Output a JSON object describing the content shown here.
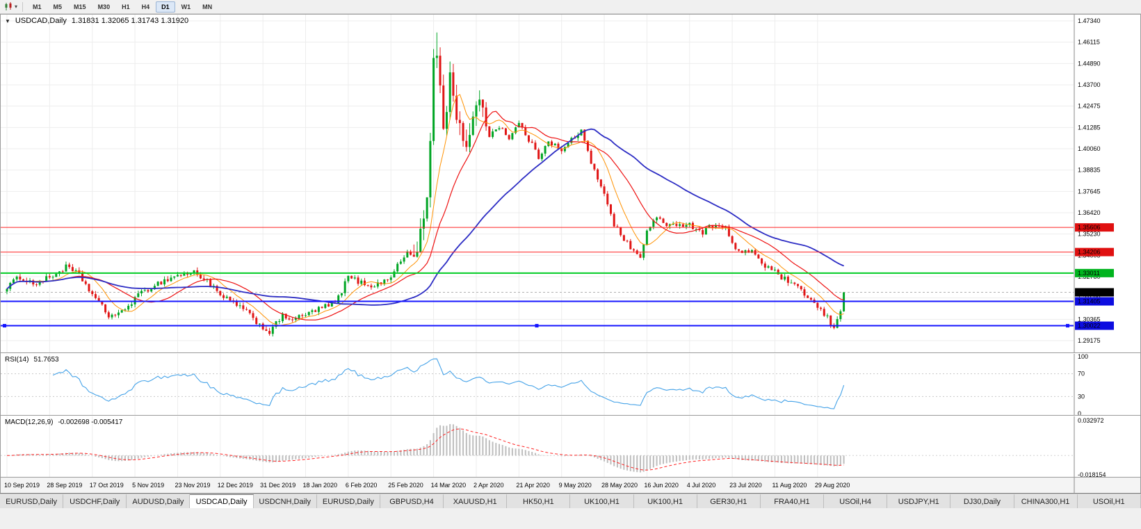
{
  "icons": {
    "dropdown": "▾",
    "collapse": "▼"
  },
  "toolbar": {
    "chart_type_icon": "candlestick-chart-icon",
    "timeframes": [
      {
        "label": "M1"
      },
      {
        "label": "M5"
      },
      {
        "label": "M15"
      },
      {
        "label": "M30"
      },
      {
        "label": "H1"
      },
      {
        "label": "H4"
      },
      {
        "label": "D1"
      },
      {
        "label": "W1"
      },
      {
        "label": "MN"
      }
    ],
    "active_timeframe": "D1"
  },
  "chart_header": {
    "symbol": "USDCAD,Daily",
    "ohlc": "1.31831 1.32065 1.31743 1.31920"
  },
  "chart_data": {
    "type": "candlestick",
    "symbol": "USDCAD",
    "timeframe": "Daily",
    "num_candles": 256,
    "candles_per_x_label": 13,
    "ylim": [
      1.29175,
      1.4734
    ],
    "y_axis_ticks": [
      "1.47340",
      "1.46115",
      "1.44890",
      "1.43700",
      "1.42475",
      "1.41285",
      "1.40060",
      "1.38835",
      "1.37645",
      "1.36420",
      "1.35230",
      "1.34005",
      "1.32780",
      "1.31590",
      "1.30365",
      "1.29175"
    ],
    "x_axis_dates": [
      "10 Sep 2019",
      "28 Sep 2019",
      "17 Oct 2019",
      "5 Nov 2019",
      "23 Nov 2019",
      "12 Dec 2019",
      "31 Dec 2019",
      "18 Jan 2020",
      "6 Feb 2020",
      "25 Feb 2020",
      "14 Mar 2020",
      "2 Apr 2020",
      "21 Apr 2020",
      "9 May 2020",
      "28 May 2020",
      "16 Jun 2020",
      "4 Jul 2020",
      "23 Jul 2020",
      "11 Aug 2020",
      "29 Aug 2020"
    ],
    "close_waypoints": [
      [
        0,
        1.3225
      ],
      [
        4,
        1.328
      ],
      [
        8,
        1.324
      ],
      [
        13,
        1.3275
      ],
      [
        18,
        1.3335
      ],
      [
        22,
        1.329
      ],
      [
        26,
        1.318
      ],
      [
        31,
        1.306
      ],
      [
        35,
        1.3075
      ],
      [
        39,
        1.316
      ],
      [
        45,
        1.3235
      ],
      [
        52,
        1.329
      ],
      [
        57,
        1.3305
      ],
      [
        61,
        1.326
      ],
      [
        65,
        1.317
      ],
      [
        70,
        1.3125
      ],
      [
        75,
        1.3045
      ],
      [
        78,
        1.299
      ],
      [
        80,
        1.2968
      ],
      [
        84,
        1.3055
      ],
      [
        88,
        1.304
      ],
      [
        91,
        1.3065
      ],
      [
        96,
        1.3105
      ],
      [
        100,
        1.3125
      ],
      [
        104,
        1.328
      ],
      [
        108,
        1.3245
      ],
      [
        112,
        1.323
      ],
      [
        116,
        1.3265
      ],
      [
        119,
        1.334
      ],
      [
        122,
        1.342
      ],
      [
        124,
        1.339
      ],
      [
        126,
        1.352
      ],
      [
        128,
        1.372
      ],
      [
        129,
        1.405
      ],
      [
        130,
        1.448
      ],
      [
        131,
        1.455
      ],
      [
        132,
        1.438
      ],
      [
        133,
        1.412
      ],
      [
        134,
        1.425
      ],
      [
        135,
        1.442
      ],
      [
        136,
        1.43
      ],
      [
        138,
        1.412
      ],
      [
        140,
        1.404
      ],
      [
        143,
        1.423
      ],
      [
        145,
        1.426
      ],
      [
        147,
        1.408
      ],
      [
        150,
        1.414
      ],
      [
        153,
        1.407
      ],
      [
        156,
        1.415
      ],
      [
        159,
        1.406
      ],
      [
        162,
        1.396
      ],
      [
        165,
        1.406
      ],
      [
        169,
        1.399
      ],
      [
        172,
        1.406
      ],
      [
        175,
        1.411
      ],
      [
        178,
        1.392
      ],
      [
        182,
        1.376
      ],
      [
        185,
        1.358
      ],
      [
        188,
        1.349
      ],
      [
        191,
        1.343
      ],
      [
        193,
        1.338
      ],
      [
        195,
        1.354
      ],
      [
        198,
        1.363
      ],
      [
        201,
        1.3555
      ],
      [
        204,
        1.3585
      ],
      [
        208,
        1.3575
      ],
      [
        212,
        1.3535
      ],
      [
        216,
        1.3585
      ],
      [
        219,
        1.3555
      ],
      [
        221,
        1.3465
      ],
      [
        224,
        1.3405
      ],
      [
        227,
        1.3435
      ],
      [
        230,
        1.3355
      ],
      [
        234,
        1.3305
      ],
      [
        237,
        1.3265
      ],
      [
        240,
        1.3225
      ],
      [
        243,
        1.3185
      ],
      [
        247,
        1.3105
      ],
      [
        250,
        1.3045
      ],
      [
        252,
        1.299
      ],
      [
        253,
        1.303
      ],
      [
        254,
        1.309
      ],
      [
        255,
        1.3192
      ]
    ],
    "final_close": 1.3192,
    "peak_high": 1.4668,
    "up_color": "#00a524",
    "down_color": "#e01515",
    "grid_color": "#ededed",
    "moving_averages": [
      {
        "name": "fast",
        "period": 9,
        "color": "#ff9100",
        "width": 1
      },
      {
        "name": "medium",
        "period": 20,
        "color": "#ee1111",
        "width": 1.2
      },
      {
        "name": "slow",
        "period": 50,
        "color": "#2c2cc4",
        "width": 1.8
      }
    ],
    "horizontal_levels": [
      {
        "price": 1.35606,
        "label": "1.35606",
        "line_color": "#ff2020",
        "badge_bg": "#e01010",
        "thickness": 1,
        "selected": false
      },
      {
        "price": 1.34206,
        "label": "1.34206",
        "line_color": "#ff2020",
        "badge_bg": "#e01010",
        "thickness": 1,
        "selected": false
      },
      {
        "price": 1.33011,
        "label": "1.33011",
        "line_color": "#00cc22",
        "badge_bg": "#00b41e",
        "thickness": 2,
        "selected": false
      },
      {
        "price": 1.31405,
        "label": "1.31405",
        "line_color": "#1414ff",
        "badge_bg": "#0d0de0",
        "thickness": 2,
        "selected": false
      },
      {
        "price": 1.30022,
        "label": "1.30022",
        "line_color": "#1414ff",
        "badge_bg": "#0d0de0",
        "thickness": 2,
        "selected": true
      }
    ],
    "current_price": {
      "value": 1.3192,
      "label": "1.31920",
      "badge_bg": "#000000",
      "line_color": "#b0b0b0"
    }
  },
  "rsi": {
    "label": "RSI(14)",
    "value": "51.7653",
    "period": 14,
    "line_color": "#44a2e8",
    "level_lines": [
      70,
      30
    ],
    "axis_labels": [
      {
        "v": 100,
        "t": "100"
      },
      {
        "v": 70,
        "t": "70"
      },
      {
        "v": 30,
        "t": "30"
      },
      {
        "v": 0,
        "t": "0"
      }
    ]
  },
  "macd": {
    "label": "MACD(12,26,9)",
    "values": "-0.002698 -0.005417",
    "fast": 12,
    "slow": 26,
    "signal": 9,
    "hist_color": "#bdbdbd",
    "signal_color": "#ff2222",
    "axis_top": {
      "v": 0.032972,
      "t": "0.032972"
    },
    "axis_bottom": {
      "v": -0.018154,
      "t": "-0.018154"
    }
  },
  "tabs": [
    {
      "label": "EURUSD,Daily",
      "active": false
    },
    {
      "label": "USDCHF,Daily",
      "active": false
    },
    {
      "label": "AUDUSD,Daily",
      "active": false
    },
    {
      "label": "USDCAD,Daily",
      "active": true
    },
    {
      "label": "USDCNH,Daily",
      "active": false
    },
    {
      "label": "EURUSD,Daily",
      "active": false
    },
    {
      "label": "GBPUSD,H4",
      "active": false
    },
    {
      "label": "XAUUSD,H1",
      "active": false
    },
    {
      "label": "HK50,H1",
      "active": false
    },
    {
      "label": "UK100,H1",
      "active": false
    },
    {
      "label": "UK100,H1",
      "active": false
    },
    {
      "label": "GER30,H1",
      "active": false
    },
    {
      "label": "FRA40,H1",
      "active": false
    },
    {
      "label": "USOil,H4",
      "active": false
    },
    {
      "label": "USDJPY,H1",
      "active": false
    },
    {
      "label": "DJ30,Daily",
      "active": false
    },
    {
      "label": "CHINA300,H1",
      "active": false
    },
    {
      "label": "USOil,H1",
      "active": false
    }
  ]
}
